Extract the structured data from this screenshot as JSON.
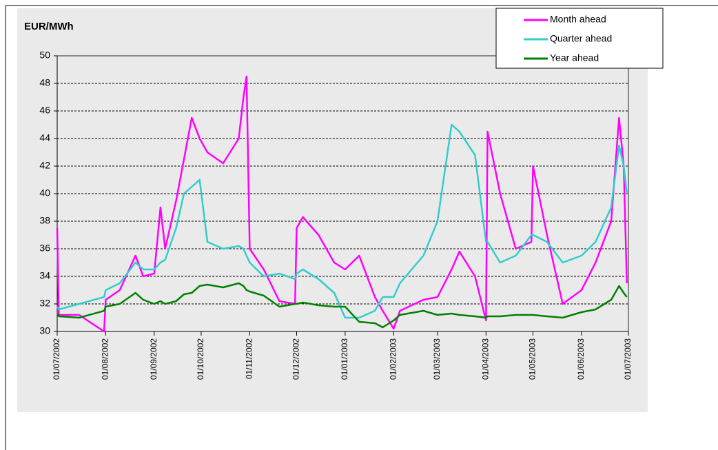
{
  "chart_data": {
    "type": "line",
    "ylabel": "EUR/MWh",
    "x": [
      "2002-07-01",
      "2002-07-02",
      "2002-07-15",
      "2002-07-31",
      "2002-08-01",
      "2002-08-10",
      "2002-08-20",
      "2002-08-25",
      "2002-09-01",
      "2002-09-05",
      "2002-09-08",
      "2002-09-15",
      "2002-09-20",
      "2002-09-25",
      "2002-09-30",
      "2002-10-05",
      "2002-10-15",
      "2002-10-25",
      "2002-10-28",
      "2002-10-30",
      "2002-11-01",
      "2002-11-10",
      "2002-11-20",
      "2002-11-30",
      "2002-12-01",
      "2002-12-05",
      "2002-12-15",
      "2002-12-25",
      "2003-01-01",
      "2003-01-10",
      "2003-01-20",
      "2003-01-25",
      "2003-02-01",
      "2003-02-05",
      "2003-02-20",
      "2003-03-01",
      "2003-03-10",
      "2003-03-15",
      "2003-03-25",
      "2003-04-01",
      "2003-04-02",
      "2003-04-10",
      "2003-04-20",
      "2003-04-30",
      "2003-05-01",
      "2003-05-10",
      "2003-05-20",
      "2003-06-01",
      "2003-06-10",
      "2003-06-20",
      "2003-06-25",
      "2003-06-28",
      "2003-06-30"
    ],
    "series": [
      {
        "name": "Month ahead",
        "color": "#ff00ff",
        "values": [
          37.5,
          31.2,
          31.2,
          30.0,
          32.3,
          33.0,
          35.5,
          34,
          34.2,
          39,
          36,
          39.5,
          42.5,
          45.5,
          44,
          43,
          42.2,
          44,
          47,
          48.5,
          36,
          34.5,
          32.2,
          32,
          37.5,
          38.3,
          37,
          35,
          34.5,
          35.5,
          32.5,
          31.5,
          30.2,
          31.5,
          32.3,
          32.5,
          34.5,
          35.8,
          34,
          30.8,
          44.5,
          40,
          36,
          36.5,
          42,
          37,
          32,
          33,
          35,
          38,
          45.5,
          42,
          33.5
        ]
      },
      {
        "name": "Quarter ahead",
        "color": "#33cccc",
        "values": [
          31.8,
          31.6,
          32,
          32.5,
          33,
          33.5,
          35,
          34.5,
          34.5,
          35,
          35.2,
          37.5,
          40,
          40.5,
          41,
          36.5,
          36,
          36.2,
          36,
          35.5,
          35,
          34,
          34.2,
          33.8,
          34.2,
          34.5,
          33.8,
          32.8,
          31,
          31,
          31.5,
          32.5,
          32.5,
          33.5,
          35.5,
          38,
          45,
          44.5,
          42.8,
          36.5,
          36.5,
          35,
          35.5,
          37,
          37,
          36.5,
          35,
          35.5,
          36.5,
          39,
          43.5,
          42,
          40
        ]
      },
      {
        "name": "Year ahead",
        "color": "#008000",
        "values": [
          31.3,
          31.1,
          31.0,
          31.5,
          31.8,
          32,
          32.8,
          32.3,
          32,
          32.2,
          32,
          32.2,
          32.7,
          32.8,
          33.3,
          33.4,
          33.2,
          33.5,
          33.3,
          33,
          32.9,
          32.6,
          31.8,
          32,
          32,
          32.1,
          31.9,
          31.8,
          31.8,
          30.7,
          30.6,
          30.3,
          30.8,
          31.2,
          31.5,
          31.2,
          31.3,
          31.2,
          31.1,
          31.0,
          31.1,
          31.1,
          31.2,
          31.2,
          31.2,
          31.1,
          31.0,
          31.4,
          31.6,
          32.3,
          33.3,
          32.8,
          32.5
        ]
      }
    ],
    "xlim": [
      "2002-07-01",
      "2003-07-01"
    ],
    "xticks": [
      {
        "value": "2002-07-01",
        "label": "01/07/2002"
      },
      {
        "value": "2002-08-01",
        "label": "01/08/2002"
      },
      {
        "value": "2002-09-01",
        "label": "01/09/2002"
      },
      {
        "value": "2002-10-01",
        "label": "01/10/2002"
      },
      {
        "value": "2002-11-01",
        "label": "01/11/2002"
      },
      {
        "value": "2002-12-01",
        "label": "01/12/2002"
      },
      {
        "value": "2003-01-01",
        "label": "01/01/2003"
      },
      {
        "value": "2003-02-01",
        "label": "01/02/2003"
      },
      {
        "value": "2003-03-01",
        "label": "01/03/2003"
      },
      {
        "value": "2003-04-01",
        "label": "01/04/2003"
      },
      {
        "value": "2003-05-01",
        "label": "01/05/2003"
      },
      {
        "value": "2003-06-01",
        "label": "01/06/2003"
      },
      {
        "value": "2003-07-01",
        "label": "01/07/2003"
      }
    ],
    "ylim": [
      30,
      50
    ],
    "yticks": [
      30,
      32,
      34,
      36,
      38,
      40,
      42,
      44,
      46,
      48,
      50
    ],
    "grid": true
  }
}
